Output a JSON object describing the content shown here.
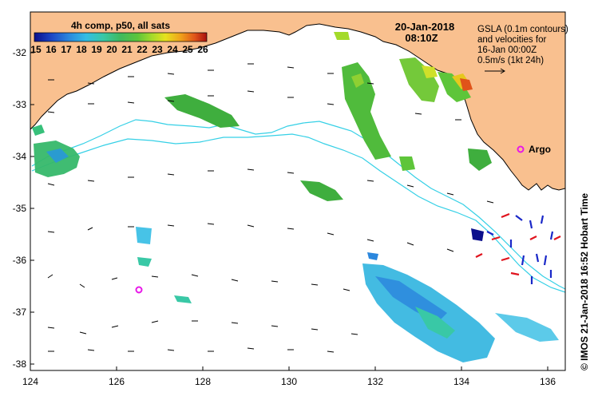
{
  "colorbar": {
    "title": "4h comp, p50, all sats",
    "ticks": [
      "15",
      "16",
      "17",
      "18",
      "19",
      "20",
      "21",
      "22",
      "23",
      "24",
      "25",
      "26"
    ]
  },
  "date": "20-Jan-2018",
  "time": "08:10Z",
  "info_lines": [
    "GSLA (0.1m contours)",
    "and velocities for",
    "16-Jan 00:00Z",
    "0.5m/s (1kt 24h)"
  ],
  "argo_label": "Argo",
  "credit": "© IMOS 21-Jan-2018 16:52 Hobart Time",
  "lon_labels": [
    "124",
    "126",
    "128",
    "130",
    "132",
    "134",
    "136"
  ],
  "lat_labels": [
    "-32",
    "-33",
    "-34",
    "-35",
    "-36",
    "-37",
    "-38"
  ],
  "colors": {
    "land": "#f9c08f",
    "coast": "#000000",
    "isobath": "#35d0e6",
    "argo": "#e817e8",
    "red_vector": "#e0141e",
    "blue_vector": "#1a28c8"
  },
  "colormap": [
    "#0b0f8c",
    "#1d47c6",
    "#2b87dd",
    "#33bde4",
    "#39c8a6",
    "#3fb95e",
    "#5ec53a",
    "#a3da2a",
    "#e6e21e",
    "#f0a01a",
    "#e0541a",
    "#a8110f"
  ]
}
